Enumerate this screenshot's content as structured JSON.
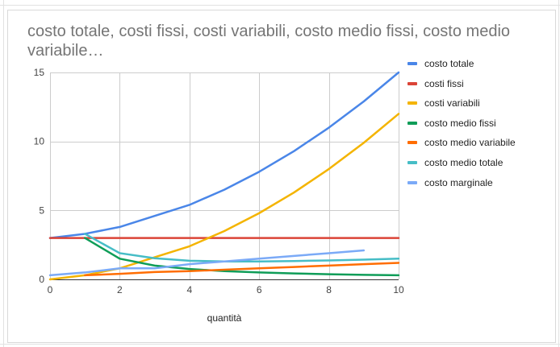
{
  "chart_data": {
    "type": "line",
    "title": "costo totale, costi fissi, costi variabili, costo medio fissi, costo medio variabile…",
    "xlabel": "quantità",
    "ylabel": "",
    "xlim": [
      0,
      10
    ],
    "ylim": [
      0,
      15
    ],
    "xticks": [
      0,
      2,
      4,
      6,
      8,
      10
    ],
    "yticks": [
      0,
      5,
      10,
      15
    ],
    "grid": true,
    "legend_position": "right",
    "series": [
      {
        "name": "costo totale",
        "color": "#4a86e8",
        "x": [
          0,
          1,
          2,
          3,
          4,
          5,
          6,
          7,
          8,
          9,
          10
        ],
        "y": [
          3,
          3.3,
          3.8,
          4.6,
          5.4,
          6.5,
          7.8,
          9.3,
          11.0,
          12.9,
          15.0
        ]
      },
      {
        "name": "costi fissi",
        "color": "#db4437",
        "x": [
          0,
          1,
          2,
          3,
          4,
          5,
          6,
          7,
          8,
          9,
          10
        ],
        "y": [
          3,
          3,
          3,
          3,
          3,
          3,
          3,
          3,
          3,
          3,
          3
        ]
      },
      {
        "name": "costi variabili",
        "color": "#f4b400",
        "x": [
          0,
          1,
          2,
          3,
          4,
          5,
          6,
          7,
          8,
          9,
          10
        ],
        "y": [
          0,
          0.3,
          0.8,
          1.6,
          2.4,
          3.5,
          4.8,
          6.3,
          8.0,
          9.9,
          12.0
        ]
      },
      {
        "name": "costo medio fissi",
        "color": "#0f9d58",
        "x": [
          1,
          2,
          3,
          4,
          5,
          6,
          7,
          8,
          9,
          10
        ],
        "y": [
          3.0,
          1.5,
          1.0,
          0.75,
          0.6,
          0.5,
          0.43,
          0.375,
          0.33,
          0.3
        ]
      },
      {
        "name": "costo medio variabile",
        "color": "#ff6d01",
        "x": [
          1,
          2,
          3,
          4,
          5,
          6,
          7,
          8,
          9,
          10
        ],
        "y": [
          0.3,
          0.4,
          0.53,
          0.6,
          0.7,
          0.8,
          0.9,
          1.0,
          1.1,
          1.2
        ]
      },
      {
        "name": "costo medio totale",
        "color": "#46bdc6",
        "x": [
          1,
          2,
          3,
          4,
          5,
          6,
          7,
          8,
          9,
          10
        ],
        "y": [
          3.3,
          1.9,
          1.53,
          1.35,
          1.3,
          1.3,
          1.33,
          1.375,
          1.43,
          1.5
        ]
      },
      {
        "name": "costo marginale",
        "color": "#7baaf7",
        "x": [
          0,
          1,
          2,
          3,
          4,
          5,
          6,
          7,
          8,
          9
        ],
        "y": [
          0.3,
          0.5,
          0.8,
          0.8,
          1.1,
          1.3,
          1.5,
          1.7,
          1.9,
          2.1
        ]
      }
    ]
  }
}
